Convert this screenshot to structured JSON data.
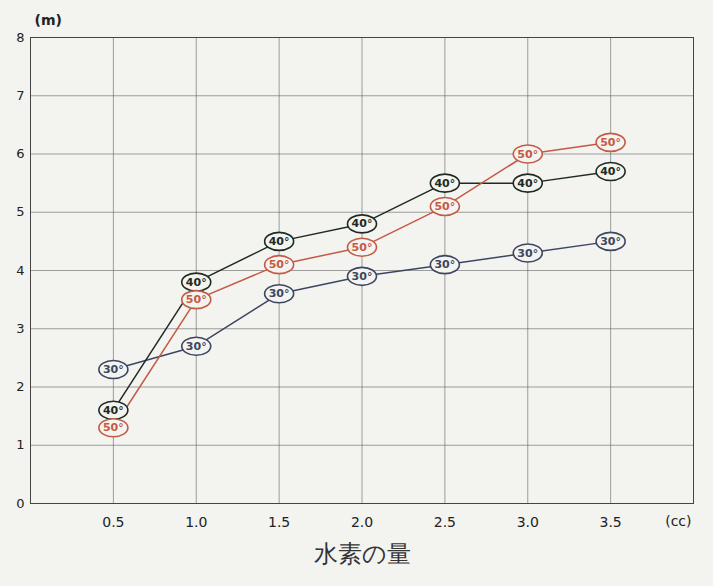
{
  "chart_data": {
    "type": "line",
    "xlabel": "水素の量",
    "ylabel": "(m)",
    "annotations": [
      "(cc)"
    ],
    "x": [
      0.5,
      1,
      1.5,
      2,
      2.5,
      3,
      3.5
    ],
    "xlim": [
      0,
      4
    ],
    "xticks": [
      0.5,
      {
        "value": 1,
        "label": "1.0"
      },
      1.5,
      {
        "value": 2,
        "label": "2.0"
      },
      2.5,
      {
        "value": 3,
        "label": "3.0"
      },
      3.5
    ],
    "ylim": [
      0,
      8
    ],
    "yticks": [
      0,
      1,
      2,
      3,
      4,
      5,
      6,
      7,
      8
    ],
    "grid": true,
    "marker": "ellipse",
    "series": [
      {
        "name": "30°",
        "color": "#3d4660",
        "values": [
          2.3,
          2.7,
          3.6,
          3.9,
          4.1,
          4.3,
          4.5
        ]
      },
      {
        "name": "40°",
        "color": "#1e2b22",
        "values": [
          1.6,
          3.8,
          4.5,
          4.8,
          5.5,
          5.5,
          5.7
        ]
      },
      {
        "name": "50°",
        "color": "#c45a45",
        "values": [
          1.3,
          3.5,
          4.1,
          4.4,
          5.1,
          6.0,
          6.2
        ]
      }
    ]
  }
}
